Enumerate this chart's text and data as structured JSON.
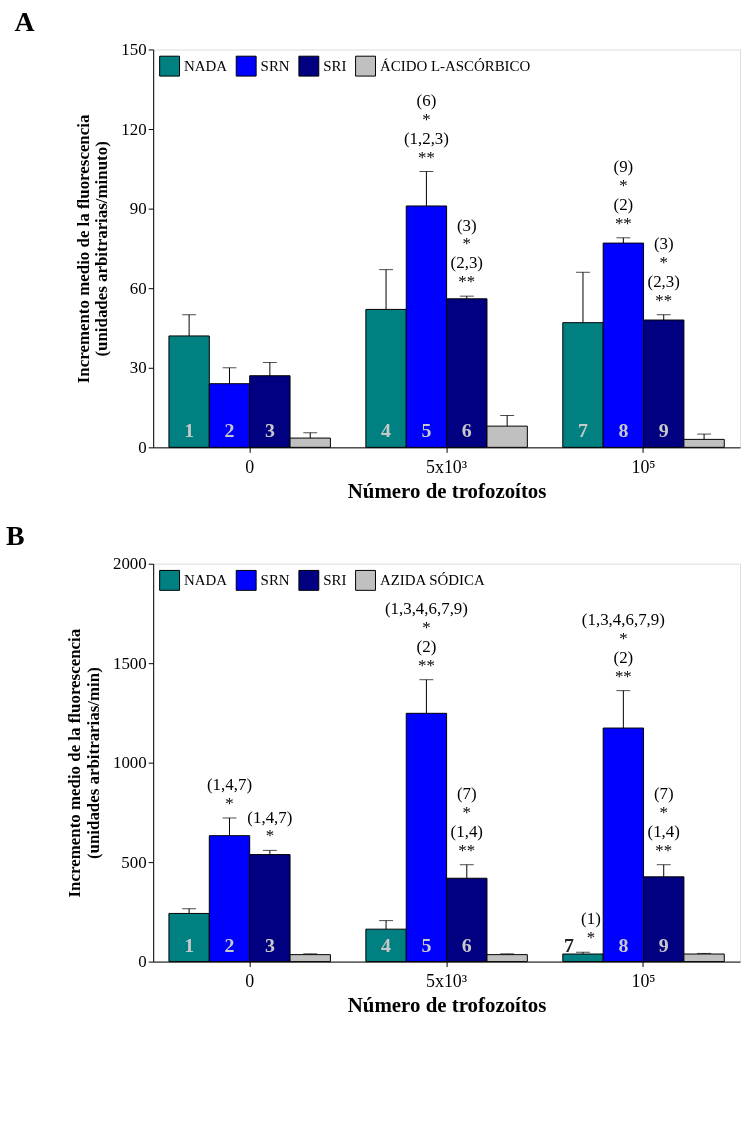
{
  "chart_data": [
    {
      "type": "bar",
      "title": "A",
      "xlabel": "Número de trofozoítos",
      "ylabel": "Incremento medio de la fluorescencia\n(unidades arbitrarias/minuto)",
      "categories": [
        "0",
        "5x10³",
        "10⁵"
      ],
      "ylim": [
        0,
        150
      ],
      "yticks": [
        0,
        30,
        60,
        90,
        120,
        150
      ],
      "legend": "top left",
      "series": [
        {
          "name": "NADA",
          "color": "#008080",
          "values": [
            42,
            52,
            47
          ],
          "errors": [
            [
              42,
              50
            ],
            [
              52,
              67
            ],
            [
              47,
              66
            ]
          ]
        },
        {
          "name": "SRN",
          "color": "#0000ff",
          "values": [
            24,
            91,
            77
          ],
          "errors": [
            [
              24,
              30
            ],
            [
              91,
              104
            ],
            [
              77,
              79
            ]
          ]
        },
        {
          "name": "SRI",
          "color": "#000080",
          "values": [
            27,
            56,
            48
          ],
          "errors": [
            [
              27,
              32
            ],
            [
              56,
              57
            ],
            [
              48,
              50
            ]
          ]
        },
        {
          "name": "ÁCIDO L-ASCÓRBICO",
          "color": "#c0c0c0",
          "values": [
            3.5,
            8,
            3
          ],
          "errors": [
            [
              3.5,
              5.5
            ],
            [
              8,
              12
            ],
            [
              3,
              5
            ]
          ]
        }
      ],
      "annotations": [
        "1",
        "2",
        "3",
        "4",
        "5",
        "6",
        "7",
        "8",
        "9",
        {
          "text": "(6)\n*\n(1,2,3)\n**",
          "x": "5x10³",
          "y": 91
        },
        {
          "text": "(3)\n*\n(2,3)\n**",
          "x": "5x10³",
          "y": 56
        },
        {
          "text": "(9)\n*\n(2)\n**",
          "x": "10⁵",
          "y": 77
        },
        {
          "text": "(3)\n*\n(2,3)\n**",
          "x": "10⁵",
          "y": 48
        }
      ]
    },
    {
      "type": "bar",
      "title": "B",
      "xlabel": "Número de trofozoítos",
      "ylabel": "Incremento medio de la fluorescencia\n(unidades arbitrarias/min)",
      "categories": [
        "0",
        "5x10³",
        "10⁵"
      ],
      "ylim": [
        0,
        2000
      ],
      "yticks": [
        0,
        500,
        1000,
        1500,
        2000
      ],
      "legend": "top left",
      "series": [
        {
          "name": "NADA",
          "color": "#008080",
          "values": [
            242,
            163,
            38
          ],
          "errors": [
            [
              242,
              265
            ],
            [
              163,
              206
            ],
            [
              38,
              47
            ]
          ]
        },
        {
          "name": "SRN",
          "color": "#0000ff",
          "values": [
            633,
            1248,
            1174
          ],
          "errors": [
            [
              633,
              722
            ],
            [
              1248,
              1417
            ],
            [
              1174,
              1362
            ]
          ]
        },
        {
          "name": "SRI",
          "color": "#000080",
          "values": [
            538,
            419,
            426
          ],
          "errors": [
            [
              538,
              559
            ],
            [
              419,
              487
            ],
            [
              426,
              487
            ]
          ]
        },
        {
          "name": "AZIDA SÓDICA",
          "color": "#c0c0c0",
          "values": [
            35,
            35,
            38
          ],
          "errors": [
            [
              35,
              39
            ],
            [
              35,
              39
            ],
            [
              38,
              41
            ]
          ]
        }
      ],
      "annotations": [
        "1",
        "2",
        "3",
        "4",
        "5",
        "6",
        "7",
        "8",
        "9",
        {
          "text": "(1,4,7)\n*",
          "x": "0",
          "y": 633
        },
        {
          "text": "(1,4,7)\n*",
          "x": "0",
          "y": 538
        },
        {
          "text": "(1,3,4,6,7,9)\n*\n(2)\n**",
          "x": "5x10³",
          "y": 1248
        },
        {
          "text": "(7)\n*\n(1,4)\n**",
          "x": "5x10³",
          "y": 419
        },
        {
          "text": "(1)\n*",
          "x": "10⁵",
          "y": 38
        },
        {
          "text": "(1,3,4,6,7,9)\n*\n(2)\n**",
          "x": "10⁵",
          "y": 1174
        },
        {
          "text": "(7)\n*\n(1,4)\n**",
          "x": "10⁵",
          "y": 426
        }
      ]
    }
  ]
}
